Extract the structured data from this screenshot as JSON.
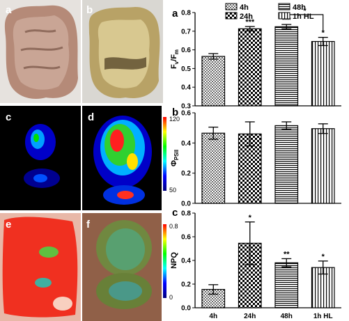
{
  "image_panels": {
    "labels": {
      "a": "a",
      "b": "b",
      "c": "c",
      "d": "d",
      "e": "e",
      "f": "f"
    },
    "colorbar_top": {
      "max_label": "120",
      "min_label": "50"
    },
    "colorbar_bottom": {
      "max_label": "0.8",
      "min_label": "0"
    }
  },
  "legend": {
    "entries": [
      "4h",
      "24h",
      "48h",
      "1h HL"
    ]
  },
  "chart_data": [
    {
      "type": "bar",
      "panel_label": "a",
      "categories": [
        "4h",
        "24h",
        "48h",
        "1h HL"
      ],
      "values": [
        0.565,
        0.713,
        0.724,
        0.645
      ],
      "errors": [
        0.015,
        0.012,
        0.012,
        0.022
      ],
      "significance": [
        "",
        "***",
        "***",
        "*"
      ],
      "bracket": {
        "between": [
          "48h",
          "1h HL"
        ],
        "label": "*"
      },
      "ylabel": "Fv/Fm",
      "ylim": [
        0.3,
        0.8
      ],
      "yticks": [
        "0.3",
        "0.4",
        "0.5",
        "0.6",
        "0.7",
        "0.8"
      ]
    },
    {
      "type": "bar",
      "panel_label": "b",
      "categories": [
        "4h",
        "24h",
        "48h",
        "1h HL"
      ],
      "values": [
        0.465,
        0.46,
        0.515,
        0.495
      ],
      "errors": [
        0.04,
        0.08,
        0.025,
        0.032
      ],
      "significance": [
        "",
        "",
        "",
        ""
      ],
      "ylabel": "ΦPSII",
      "ylim": [
        0.0,
        0.6
      ],
      "yticks": [
        "0.0",
        "0.2",
        "0.4",
        "0.6"
      ]
    },
    {
      "type": "bar",
      "panel_label": "c",
      "categories": [
        "4h",
        "24h",
        "48h",
        "1h HL"
      ],
      "values": [
        0.155,
        0.545,
        0.38,
        0.34
      ],
      "errors": [
        0.04,
        0.18,
        0.035,
        0.055
      ],
      "significance": [
        "",
        "*",
        "**",
        "*"
      ],
      "ylabel": "NPQ",
      "ylim": [
        0.0,
        0.8
      ],
      "yticks": [
        "0.0",
        "0.2",
        "0.4",
        "0.6",
        "0.8"
      ]
    }
  ],
  "colors": {
    "bar_edge": "#000000",
    "colorbar": [
      "#000080",
      "#0000ff",
      "#00ffff",
      "#00ff00",
      "#ffff00",
      "#ff0000"
    ]
  }
}
